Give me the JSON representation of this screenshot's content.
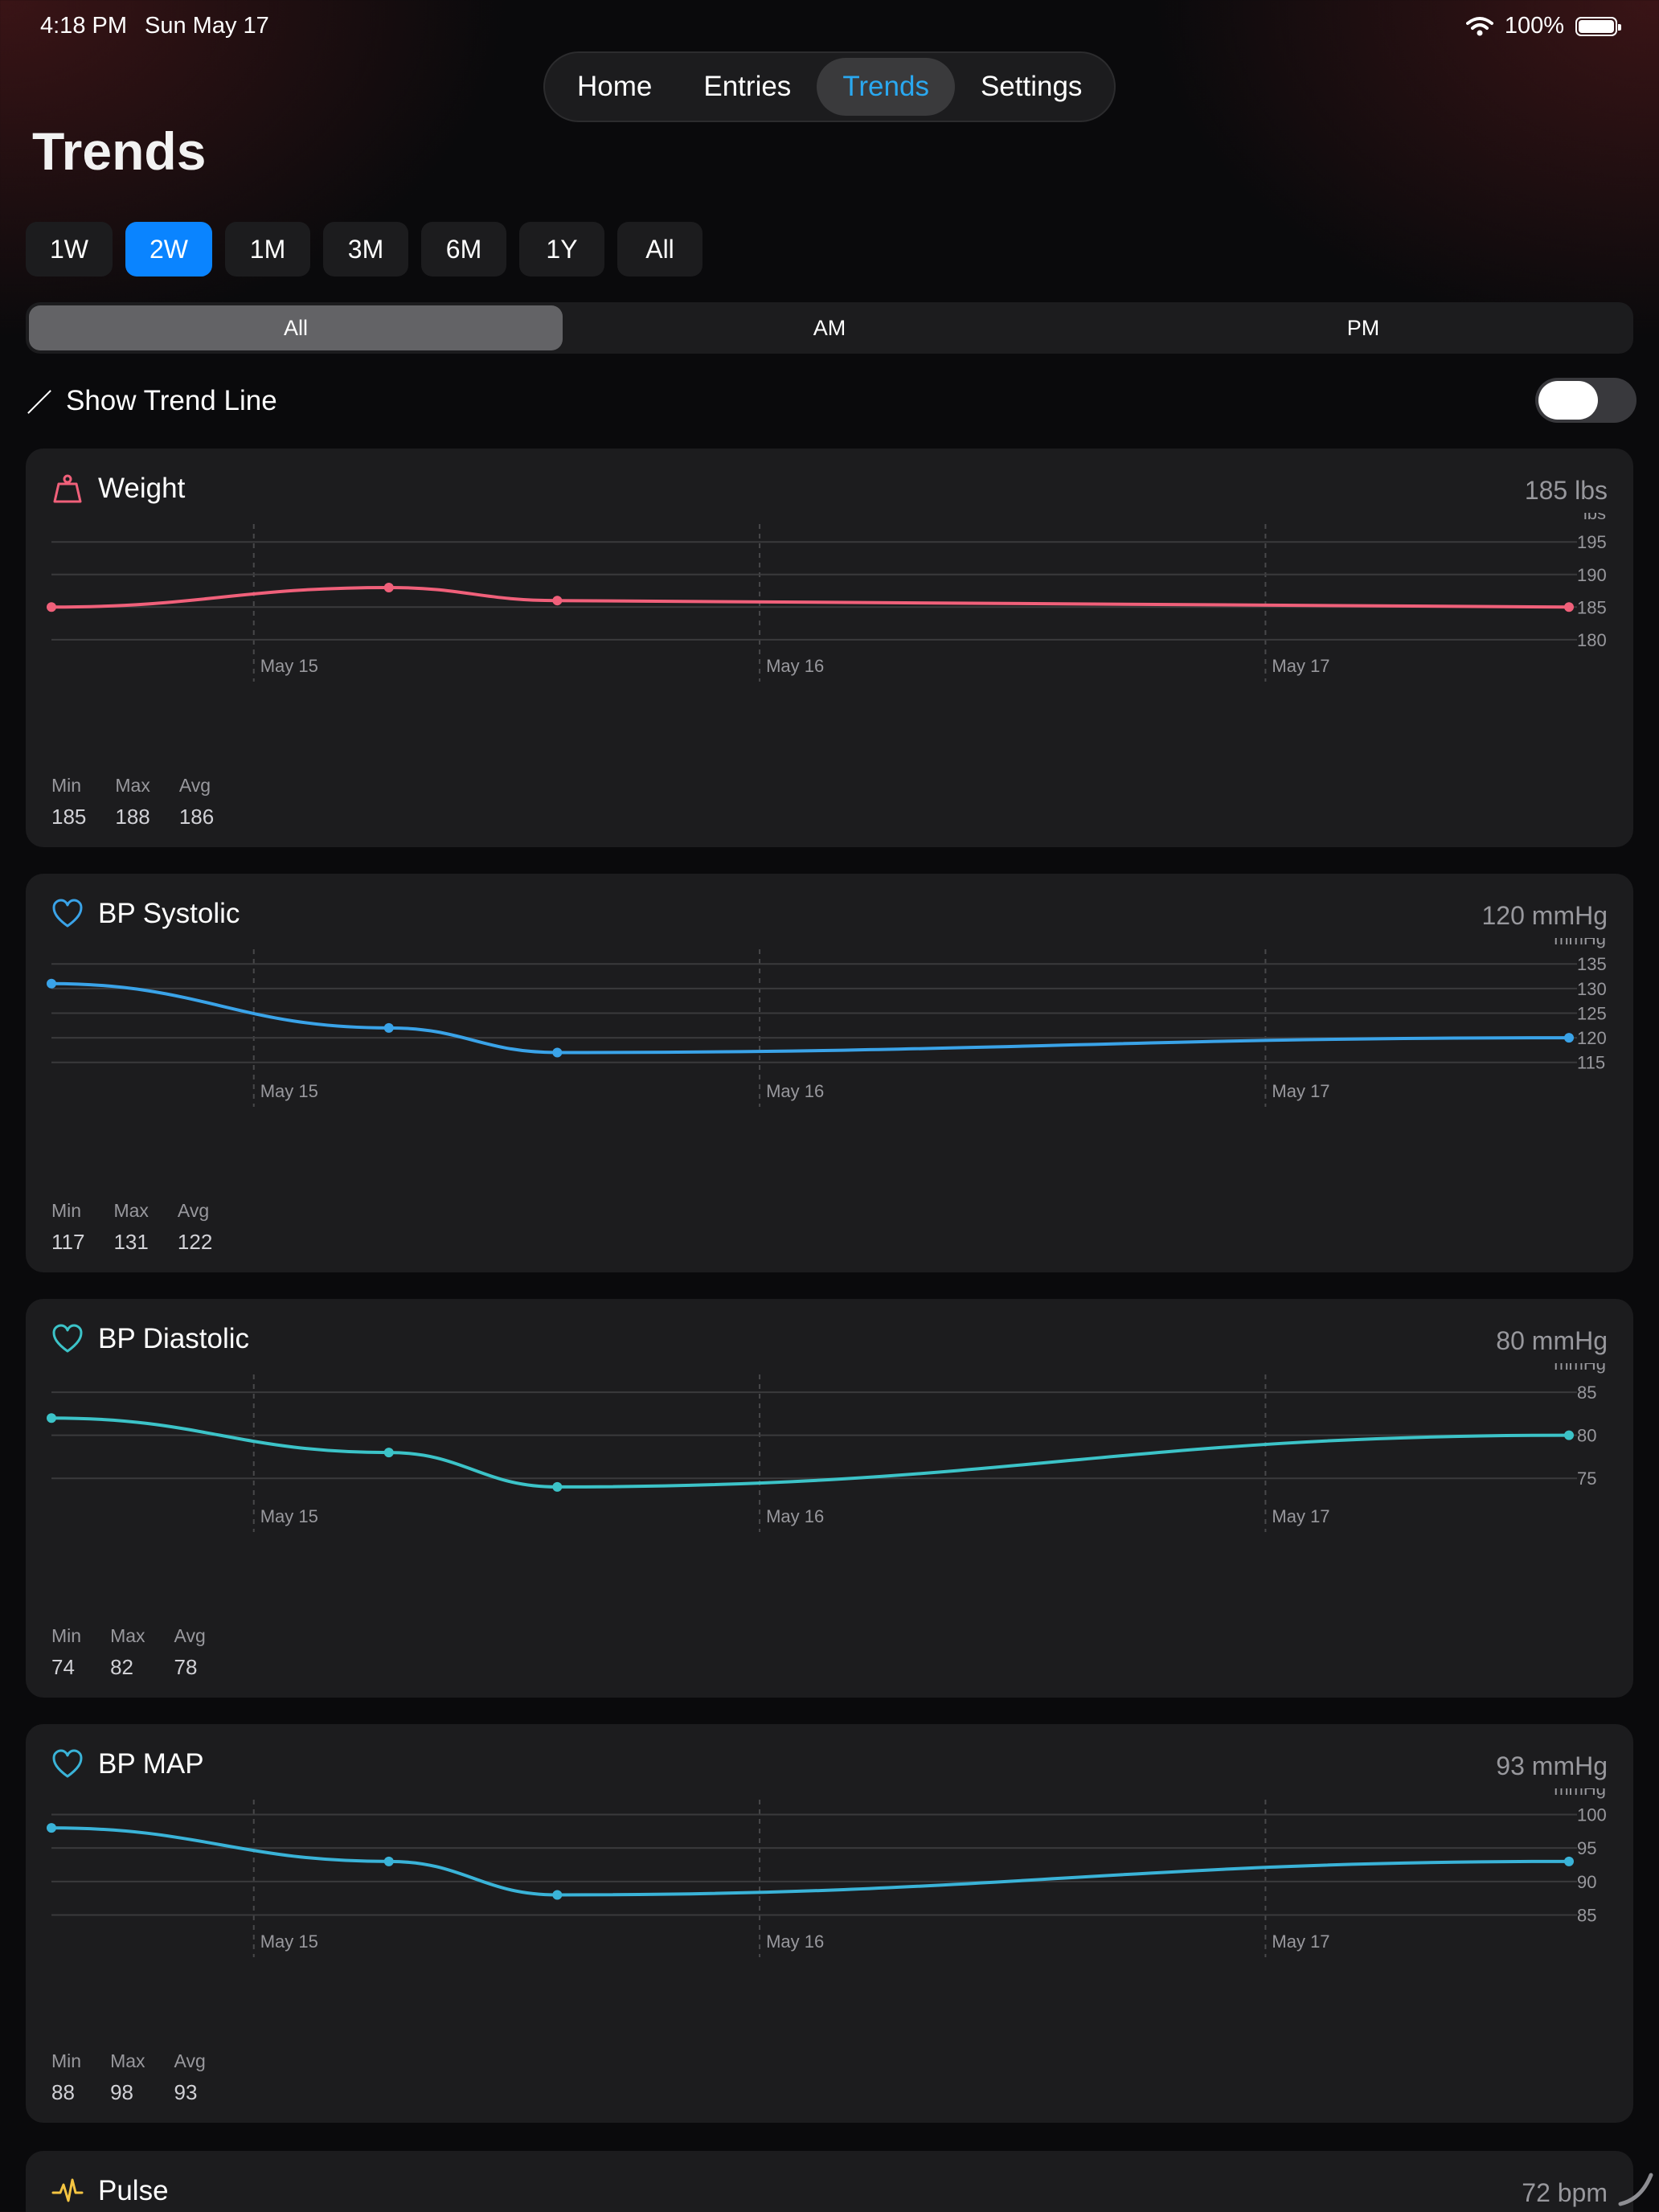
{
  "status": {
    "time": "4:18 PM",
    "date": "Sun May 17",
    "battery": "100%",
    "battery_level": 1.0
  },
  "nav": {
    "tabs": [
      "Home",
      "Entries",
      "Trends",
      "Settings"
    ],
    "active": 2
  },
  "page_title": "Trends",
  "ranges": {
    "items": [
      "1W",
      "2W",
      "1M",
      "3M",
      "6M",
      "1Y",
      "All"
    ],
    "active": 1
  },
  "segment": {
    "items": [
      "All",
      "AM",
      "PM"
    ],
    "active": 0
  },
  "trend_toggle": {
    "label": "Show Trend Line",
    "on": false
  },
  "colors": {
    "weight": "#f0607a",
    "systolic": "#3aa3e8",
    "diastolic": "#3cc3c8",
    "map": "#3ab3d8",
    "pulse": "#f5c542"
  },
  "charts": [
    {
      "key": "weight",
      "title": "Weight",
      "icon": "weight-icon",
      "current": "185 lbs",
      "unit": "lbs",
      "yticks": [
        195,
        190,
        185,
        180
      ],
      "ylim": [
        178.5,
        197
      ],
      "xticks": [
        "May 15",
        "May 16",
        "May 17"
      ],
      "points": [
        {
          "t": 0.0,
          "v": 185
        },
        {
          "t": 0.667,
          "v": 188
        },
        {
          "t": 1.0,
          "v": 186
        },
        {
          "t": 3.0,
          "v": 185
        }
      ],
      "stats": {
        "min_label": "Min",
        "min": "185",
        "max_label": "Max",
        "max": "188",
        "avg_label": "Avg",
        "avg": "186"
      }
    },
    {
      "key": "systolic",
      "title": "BP Systolic",
      "icon": "heart-icon",
      "current": "120 mmHg",
      "unit": "mmHg",
      "yticks": [
        135,
        130,
        125,
        120,
        115
      ],
      "ylim": [
        112.5,
        137
      ],
      "xticks": [
        "May 15",
        "May 16",
        "May 17"
      ],
      "points": [
        {
          "t": 0.0,
          "v": 131
        },
        {
          "t": 0.667,
          "v": 122
        },
        {
          "t": 1.0,
          "v": 117
        },
        {
          "t": 3.0,
          "v": 120
        }
      ],
      "stats": {
        "min_label": "Min",
        "min": "117",
        "max_label": "Max",
        "max": "131",
        "avg_label": "Avg",
        "avg": "122"
      }
    },
    {
      "key": "diastolic",
      "title": "BP Diastolic",
      "icon": "heart-icon",
      "current": "80 mmHg",
      "unit": "mmHg",
      "yticks": [
        85,
        80,
        75
      ],
      "ylim": [
        72.5,
        86.5
      ],
      "xticks": [
        "May 15",
        "May 16",
        "May 17"
      ],
      "points": [
        {
          "t": 0.0,
          "v": 82
        },
        {
          "t": 0.667,
          "v": 78
        },
        {
          "t": 1.0,
          "v": 74
        },
        {
          "t": 3.0,
          "v": 80
        }
      ],
      "stats": {
        "min_label": "Min",
        "min": "74",
        "max_label": "Max",
        "max": "82",
        "avg_label": "Avg",
        "avg": "78"
      }
    },
    {
      "key": "map",
      "title": "BP MAP",
      "icon": "heart-icon",
      "current": "93 mmHg",
      "unit": "mmHg",
      "yticks": [
        100,
        95,
        90,
        85
      ],
      "ylim": [
        83.5,
        101.5
      ],
      "xticks": [
        "May 15",
        "May 16",
        "May 17"
      ],
      "points": [
        {
          "t": 0.0,
          "v": 98
        },
        {
          "t": 0.667,
          "v": 93
        },
        {
          "t": 1.0,
          "v": 88
        },
        {
          "t": 3.0,
          "v": 93
        }
      ],
      "stats": {
        "min_label": "Min",
        "min": "88",
        "max_label": "Max",
        "max": "98",
        "avg_label": "Avg",
        "avg": "93"
      }
    }
  ],
  "pulse": {
    "title": "Pulse",
    "icon": "pulse-icon",
    "current": "72 bpm"
  }
}
